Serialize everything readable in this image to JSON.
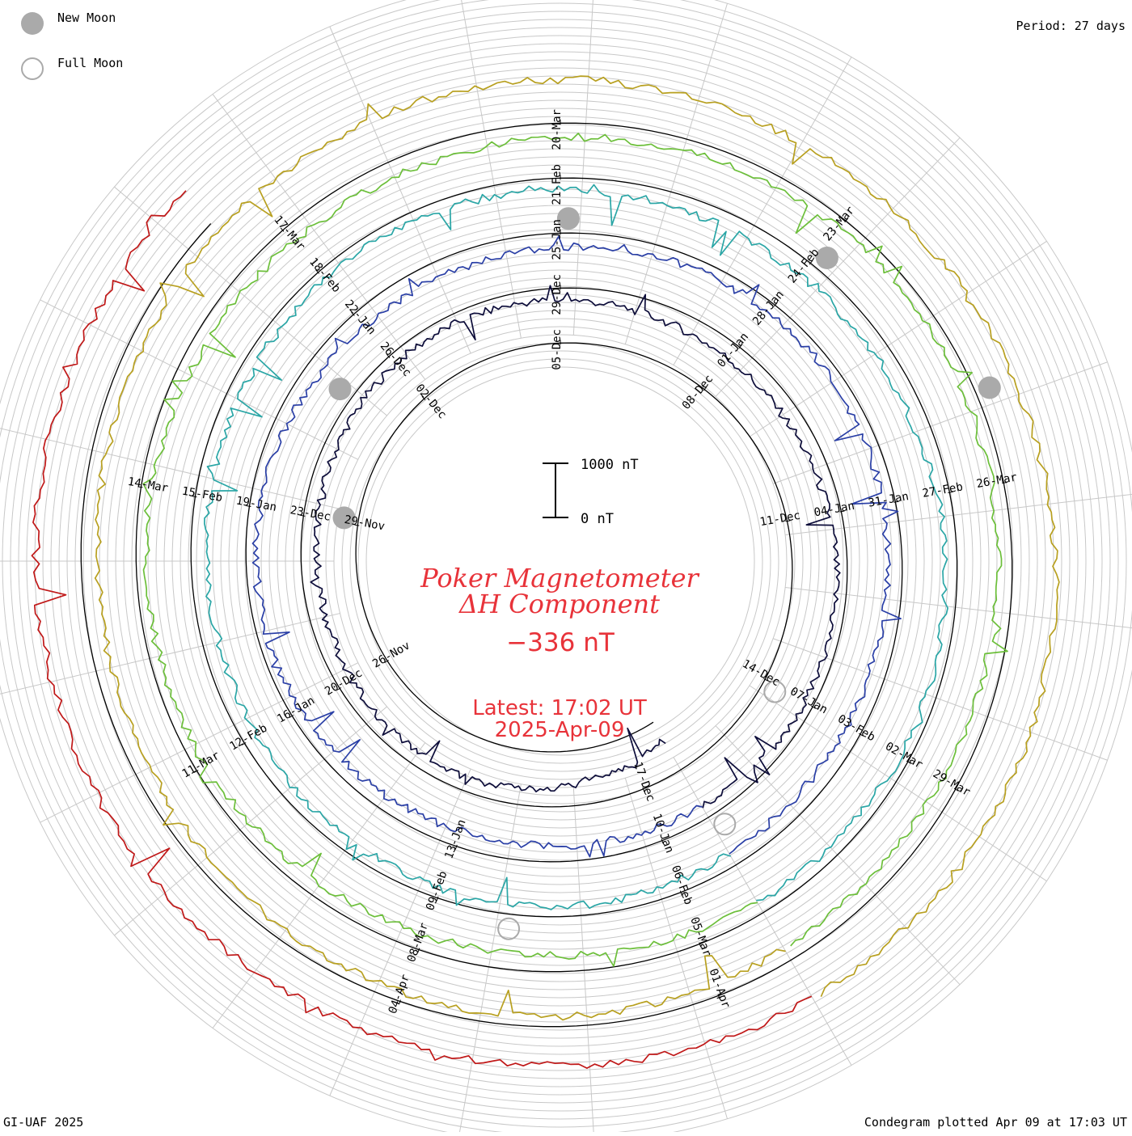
{
  "legend": {
    "new_moon_label": "New Moon",
    "full_moon_label": "Full Moon",
    "new_moon_color": "#aaaaaa",
    "full_moon_color": "#aaaaaa"
  },
  "header": {
    "period": "Period: 27 days"
  },
  "footer": {
    "credit": "GI-UAF 2025",
    "plotted": "Condegram plotted Apr 09 at 17:03 UT"
  },
  "center": {
    "title_line1": "Poker Magnetometer",
    "title_line2": "ΔH Component",
    "value": "−336 nT",
    "latest_label": "Latest: 17:02 UT",
    "latest_date": "2025-Apr-09",
    "scale_top": "1000 nT",
    "scale_bottom": "0 nT",
    "title_color": "#e8333a"
  },
  "chart_data": {
    "type": "line",
    "subtype": "condegram-spiral",
    "title": "Poker Magnetometer ΔH Component",
    "period_days": 27,
    "units": "nT",
    "scale_bar": [
      0,
      1000
    ],
    "current_value": -336,
    "series": [
      {
        "name": "",
        "color": "#0d0d3a",
        "date_labels": [
          "26-Nov",
          "29-Nov",
          "02-Dec",
          "05-Dec",
          "08-Dec",
          "11-Dec",
          "14-Dec",
          "17-Dec"
        ]
      },
      {
        "name": "",
        "color": "#2a3fa6",
        "date_labels": [
          "20-Dec",
          "23-Dec",
          "26-Dec",
          "29-Dec",
          "01-Jan",
          "04-Jan",
          "07-Jan",
          "10-Jan",
          "13-Jan"
        ]
      },
      {
        "name": "",
        "color": "#2aa6a6",
        "date_labels": [
          "16-Jan",
          "19-Jan",
          "22-Jan",
          "25-Jan",
          "28-Jan",
          "31-Jan",
          "03-Feb",
          "06-Feb",
          "09-Feb"
        ]
      },
      {
        "name": "",
        "color": "#6cbf3a",
        "date_labels": [
          "12-Feb",
          "15-Feb",
          "18-Feb",
          "21-Feb",
          "24-Feb",
          "27-Feb",
          "02-Mar",
          "05-Mar",
          "08-Mar"
        ]
      },
      {
        "name": "",
        "color": "#b8a020",
        "date_labels": [
          "11-Mar",
          "14-Mar",
          "17-Mar",
          "20-Mar",
          "23-Mar",
          "26-Mar",
          "29-Mar",
          "01-Apr",
          "04-Apr"
        ]
      },
      {
        "name": "",
        "color": "#c01818",
        "date_labels": []
      }
    ],
    "new_moons": [
      "30-Nov",
      "29-Dec",
      "29-Jan",
      "28-Feb",
      "29-Mar"
    ],
    "full_moons": [
      "15-Dec",
      "13-Jan",
      "12-Feb"
    ],
    "grid": true
  }
}
